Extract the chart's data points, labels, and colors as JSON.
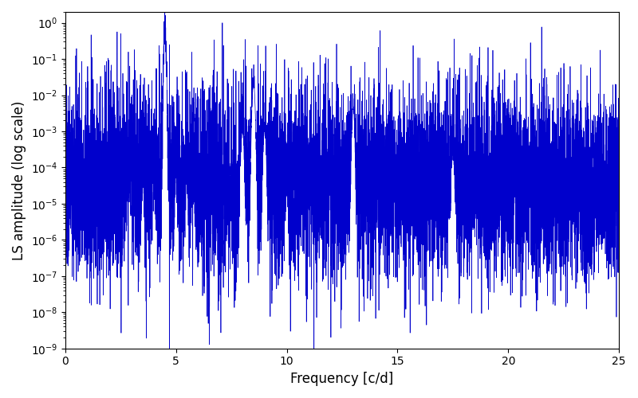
{
  "title": "",
  "xlabel": "Frequency [c/d]",
  "ylabel": "LS amplitude (log scale)",
  "xlim": [
    0,
    25
  ],
  "ylim": [
    1e-09,
    2
  ],
  "color": "#0000cc",
  "linewidth": 0.5,
  "figsize": [
    8.0,
    5.0
  ],
  "dpi": 100,
  "freq_min": 0.0,
  "freq_max": 25.0,
  "n_points": 8000,
  "peak1_freq": 4.5,
  "peak1_amp": 1.0,
  "peak2_freq": 8.5,
  "peak2_amp": 0.022,
  "peak3_freq": 13.0,
  "peak3_amp": 0.005,
  "peak4_freq": 17.5,
  "peak4_amp": 0.00022,
  "noise_floor": 3e-05,
  "background_color": "#ffffff"
}
